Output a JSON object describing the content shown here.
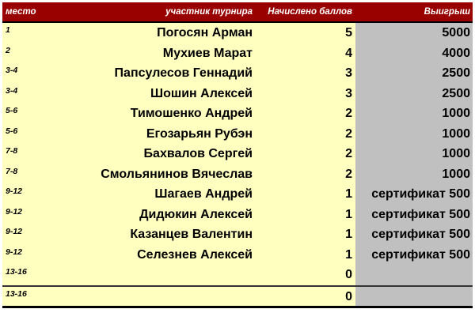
{
  "header": {
    "place": "место",
    "participant": "участник турнира",
    "points": "Начислено баллов",
    "prize": "Выигрыш"
  },
  "rows": [
    {
      "place": "1",
      "name": "Погосян Арман",
      "points": "5",
      "prize": "5000"
    },
    {
      "place": "2",
      "name": "Мухиев Марат",
      "points": "4",
      "prize": "4000"
    },
    {
      "place": "3-4",
      "name": "Папсулесов Геннадий",
      "points": "3",
      "prize": "2500"
    },
    {
      "place": "3-4",
      "name": "Шошин Алексей",
      "points": "3",
      "prize": "2500"
    },
    {
      "place": "5-6",
      "name": "Тимошенко Андрей",
      "points": "2",
      "prize": "1000"
    },
    {
      "place": "5-6",
      "name": "Егозарьян Рубэн",
      "points": "2",
      "prize": "1000"
    },
    {
      "place": "7-8",
      "name": "Бахвалов Сергей",
      "points": "2",
      "prize": "1000"
    },
    {
      "place": "7-8",
      "name": "Смольянинов Вячеслав",
      "points": "2",
      "prize": "1000"
    },
    {
      "place": "9-12",
      "name": "Шагаев Андрей",
      "points": "1",
      "prize": "сертификат 500"
    },
    {
      "place": "9-12",
      "name": "Дидюкин Алексей",
      "points": "1",
      "prize": "сертификат 500"
    },
    {
      "place": "9-12",
      "name": "Казанцев Валентин",
      "points": "1",
      "prize": "сертификат 500"
    },
    {
      "place": "9-12",
      "name": "Селезнев Алексей",
      "points": "1",
      "prize": "сертификат 500"
    },
    {
      "place": "13-16",
      "name": "",
      "points": "0",
      "prize": ""
    },
    {
      "place": "13-16",
      "name": "",
      "points": "0",
      "prize": ""
    }
  ]
}
